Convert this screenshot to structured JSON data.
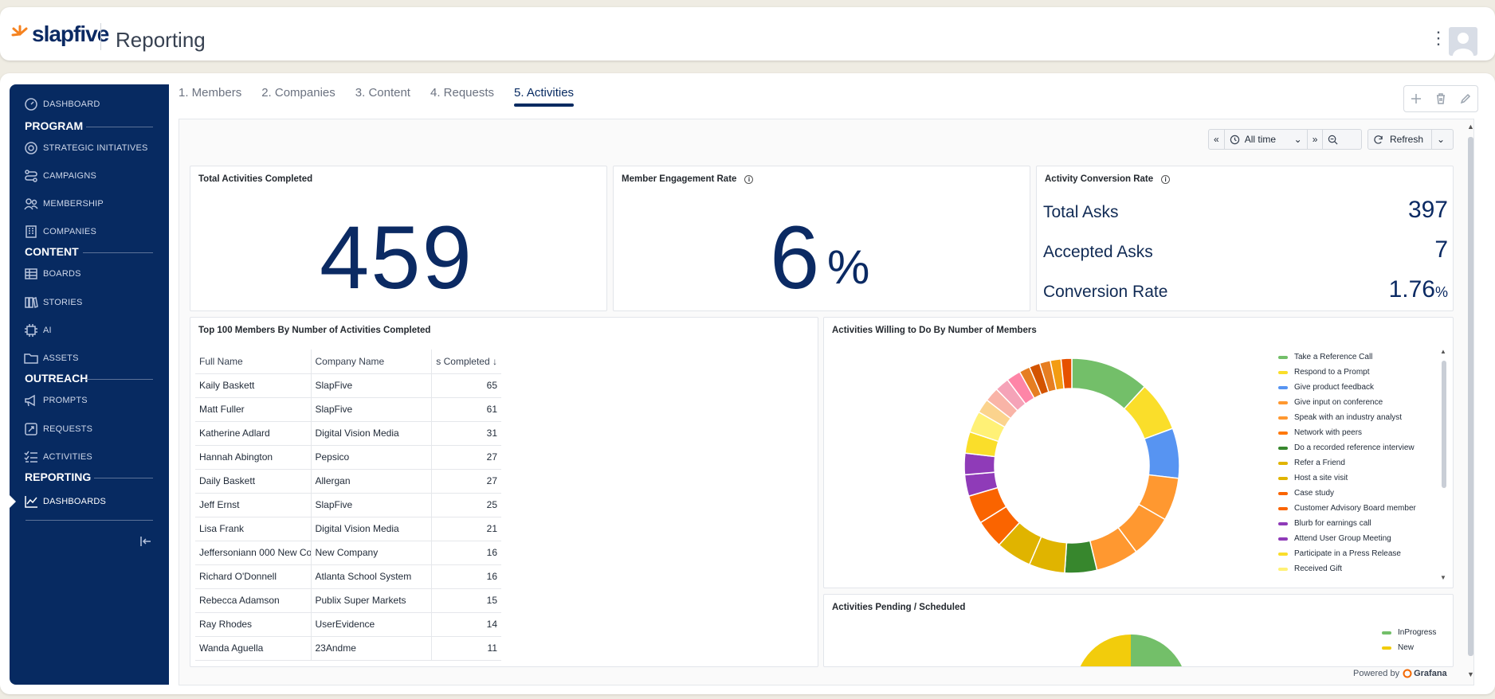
{
  "brand": {
    "logo_text": "slapfive",
    "accent": "#f5821f",
    "primary": "#072a61"
  },
  "header": {
    "title": "Reporting"
  },
  "sidebar": {
    "sections": [
      {
        "label": "PROGRAM"
      },
      {
        "label": "CONTENT"
      },
      {
        "label": "OUTREACH"
      },
      {
        "label": "REPORTING"
      }
    ],
    "items": [
      {
        "label": "DASHBOARD",
        "icon": "gauge-icon"
      },
      {
        "label": "STRATEGIC INITIATIVES",
        "icon": "target-icon"
      },
      {
        "label": "CAMPAIGNS",
        "icon": "route-icon"
      },
      {
        "label": "MEMBERSHIP",
        "icon": "users-icon"
      },
      {
        "label": "COMPANIES",
        "icon": "building-icon"
      },
      {
        "label": "BOARDS",
        "icon": "table-icon"
      },
      {
        "label": "STORIES",
        "icon": "book-icon"
      },
      {
        "label": "AI",
        "icon": "ai-chip-icon"
      },
      {
        "label": "ASSETS",
        "icon": "folder-icon"
      },
      {
        "label": "PROMPTS",
        "icon": "megaphone-icon"
      },
      {
        "label": "REQUESTS",
        "icon": "request-icon"
      },
      {
        "label": "ACTIVITIES",
        "icon": "checklist-icon"
      },
      {
        "label": "DASHBOARDS",
        "icon": "chart-line-icon"
      }
    ]
  },
  "tabs": [
    {
      "label": "1. Members"
    },
    {
      "label": "2. Companies"
    },
    {
      "label": "3. Content"
    },
    {
      "label": "4. Requests"
    },
    {
      "label": "5. Activities"
    }
  ],
  "controls": {
    "time_range": "All time",
    "refresh_label": "Refresh"
  },
  "cards": {
    "total_activities": {
      "title": "Total Activities Completed",
      "value": "459"
    },
    "engagement": {
      "title": "Member Engagement Rate",
      "value": "6",
      "unit": "%"
    },
    "conversion": {
      "title": "Activity Conversion Rate",
      "rows": [
        {
          "label": "Total Asks",
          "value": "397",
          "unit": ""
        },
        {
          "label": "Accepted Asks",
          "value": "7",
          "unit": ""
        },
        {
          "label": "Conversion Rate",
          "value": "1.76",
          "unit": "%"
        }
      ]
    },
    "top_members": {
      "title": "Top 100 Members By Number of Activities Completed",
      "columns": [
        "Full Name",
        "Company Name",
        "s Completed"
      ],
      "rows": [
        [
          "Kaily Baskett",
          "SlapFive",
          "65"
        ],
        [
          "Matt Fuller",
          "SlapFive",
          "61"
        ],
        [
          "Katherine Adlard",
          "Digital Vision Media",
          "31"
        ],
        [
          "Hannah Abington",
          "Pepsico",
          "27"
        ],
        [
          "Daily Baskett",
          "Allergan",
          "27"
        ],
        [
          "Jeff Ernst",
          "SlapFive",
          "25"
        ],
        [
          "Lisa Frank",
          "Digital Vision Media",
          "21"
        ],
        [
          "Jeffersoniann 000 New Co",
          "New Company",
          "16"
        ],
        [
          "Richard O'Donnell",
          "Atlanta School System",
          "16"
        ],
        [
          "Rebecca Adamson",
          "Publix Super Markets",
          "15"
        ],
        [
          "Ray Rhodes",
          "UserEvidence",
          "14"
        ],
        [
          "Wanda Aguella",
          "23Andme",
          "11"
        ]
      ]
    },
    "willing": {
      "title": "Activities Willing to Do By Number of Members",
      "legend": [
        {
          "label": "Take a Reference Call",
          "color": "#73bf69"
        },
        {
          "label": "Respond to a Prompt",
          "color": "#fade2a"
        },
        {
          "label": "Give product feedback",
          "color": "#5794f2"
        },
        {
          "label": "Give input on conference",
          "color": "#ff9830"
        },
        {
          "label": "Speak with an industry analyst",
          "color": "#ff9830"
        },
        {
          "label": "Network with peers",
          "color": "#ff780a"
        },
        {
          "label": "Do a recorded reference interview",
          "color": "#37872d"
        },
        {
          "label": "Refer a Friend",
          "color": "#e0b400"
        },
        {
          "label": "Host a site visit",
          "color": "#e0b400"
        },
        {
          "label": "Case study",
          "color": "#fa6400"
        },
        {
          "label": "Customer Advisory Board member",
          "color": "#fa6400"
        },
        {
          "label": "Blurb for earnings call",
          "color": "#8f3bb8"
        },
        {
          "label": "Attend User Group Meeting",
          "color": "#8f3bb8"
        },
        {
          "label": "Participate in a Press Release",
          "color": "#fade2a"
        },
        {
          "label": "Received Gift",
          "color": "#fff176"
        }
      ]
    },
    "pending": {
      "title": "Activities Pending / Scheduled",
      "legend": [
        {
          "label": "InProgress",
          "color": "#73bf69"
        },
        {
          "label": "New",
          "color": "#f2cc0c"
        }
      ]
    }
  },
  "footer": {
    "powered_by": "Powered by",
    "grafana": "Grafana"
  }
}
